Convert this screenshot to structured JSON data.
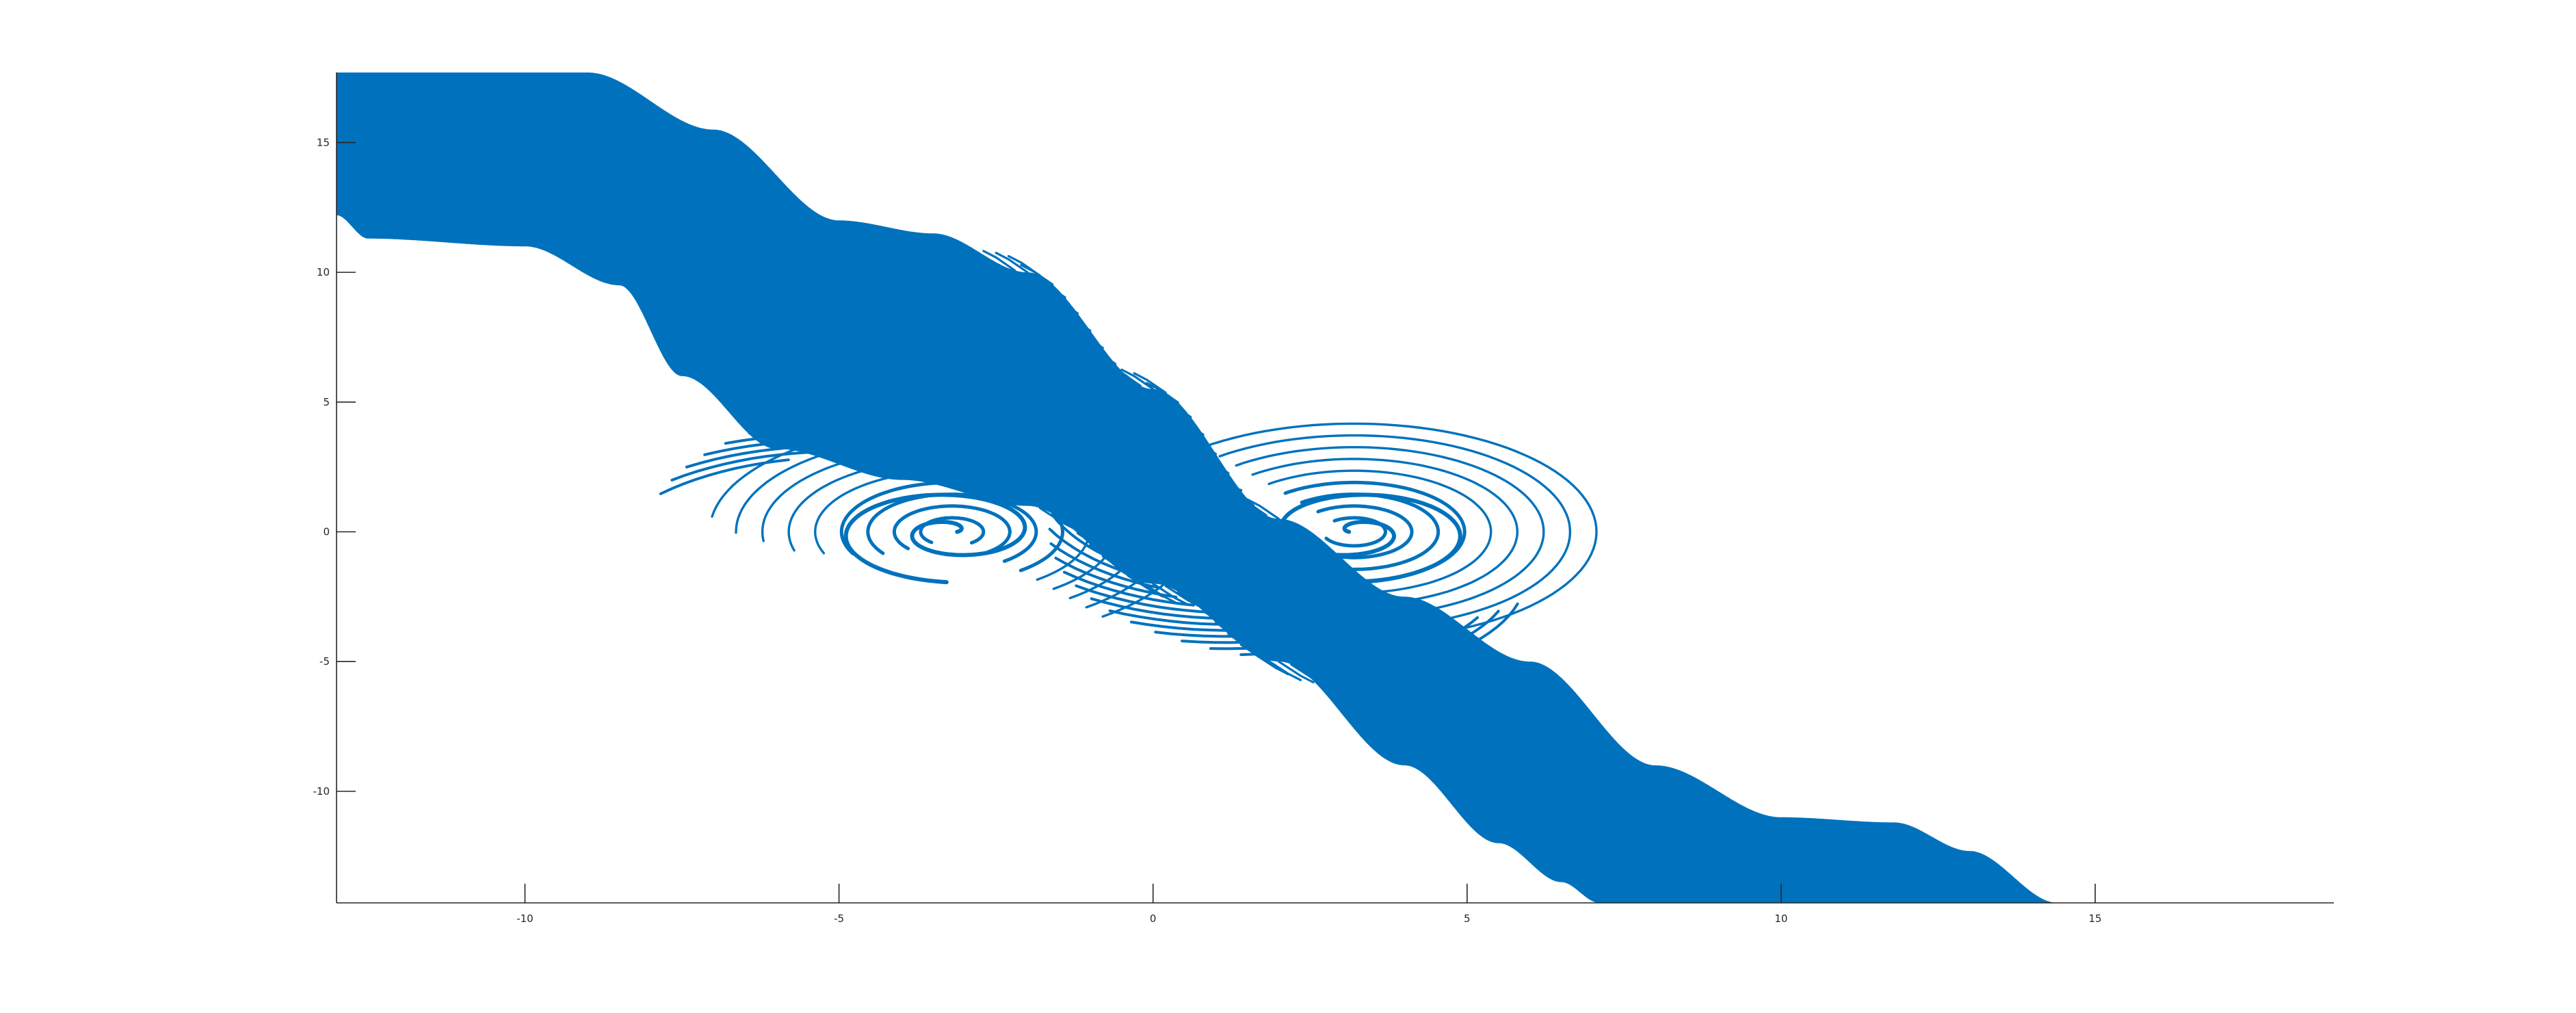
{
  "chart_data": {
    "type": "scatter",
    "title": "",
    "xlabel": "",
    "ylabel": "",
    "xlim": [
      -13,
      18.8
    ],
    "ylim": [
      -14.3,
      17.7
    ],
    "xticks": [
      -10,
      -5,
      0,
      5,
      10,
      15
    ],
    "xtick_labels": [
      "-10",
      "-5",
      "0",
      "5",
      "10",
      "15"
    ],
    "yticks": [
      -10,
      -5,
      0,
      5,
      10,
      15
    ],
    "ytick_labels": [
      "-10",
      "-5",
      "0",
      "5",
      "10",
      "15"
    ],
    "grid": false,
    "legend": "none",
    "series": [
      {
        "color": "#0072BD",
        "marker": "point",
        "band_upper_edge": [
          [
            -13,
            17.7
          ],
          [
            -9,
            17.7
          ],
          [
            -7,
            15.5
          ],
          [
            -5,
            12
          ],
          [
            -3.5,
            11.5
          ],
          [
            -2,
            10
          ],
          [
            0,
            5.5
          ],
          [
            2,
            0.5
          ],
          [
            4,
            -2.5
          ],
          [
            6,
            -5
          ],
          [
            8,
            -9
          ],
          [
            10,
            -11
          ],
          [
            11.8,
            -11.2
          ],
          [
            13,
            -12.3
          ],
          [
            14.4,
            -14.3
          ]
        ],
        "band_lower_edge": [
          [
            -13,
            12.2
          ],
          [
            -12.5,
            11.3
          ],
          [
            -10,
            11
          ],
          [
            -8.5,
            9.5
          ],
          [
            -7.5,
            6
          ],
          [
            -6,
            3.2
          ],
          [
            -4,
            2
          ],
          [
            -2,
            1
          ],
          [
            0,
            -2
          ],
          [
            2,
            -5
          ],
          [
            4,
            -9
          ],
          [
            5.5,
            -12
          ],
          [
            6.5,
            -13.5
          ],
          [
            7.1,
            -14.3
          ]
        ],
        "left_spiral": {
          "center": [
            -3.2,
            0
          ],
          "turns": 3,
          "outer_extent": [
            [
              -6.4,
              3.6
            ],
            [
              -3.5,
              -4.3
            ],
            [
              -2,
              0.5
            ]
          ]
        },
        "right_spiral": {
          "center": [
            3.2,
            0
          ],
          "turns": 3,
          "outer_extent": [
            [
              6.5,
              -3.8
            ],
            [
              3.5,
              4
            ],
            [
              2,
              -0.5
            ]
          ]
        }
      }
    ]
  }
}
